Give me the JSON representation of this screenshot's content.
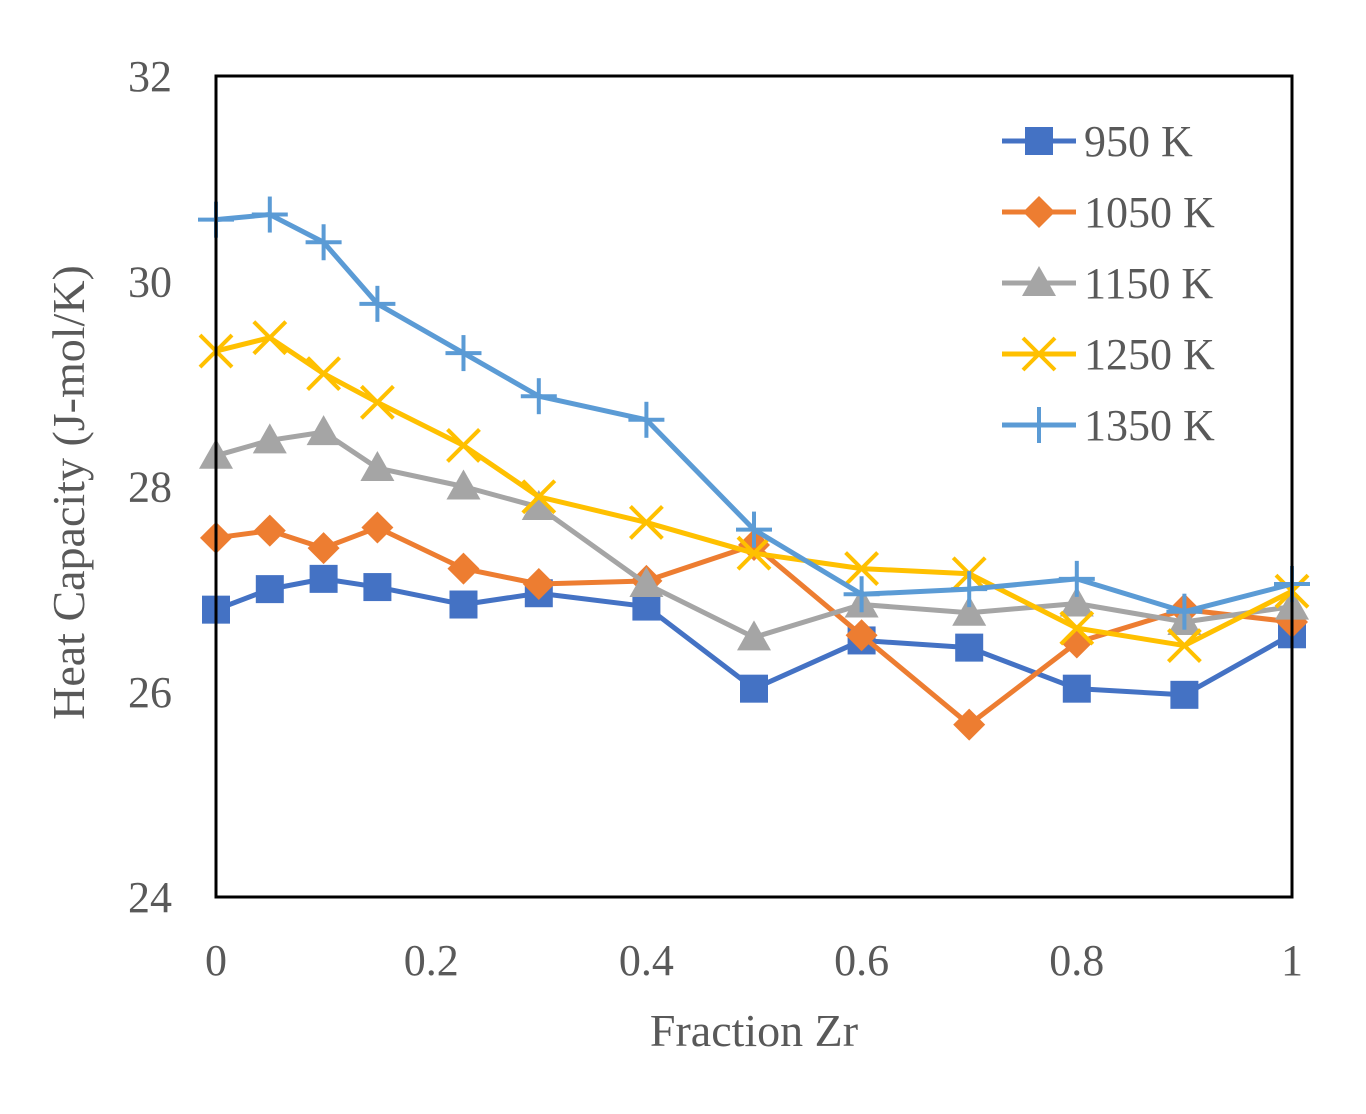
{
  "chart_data": {
    "type": "line",
    "title": "",
    "xlabel": "Fraction Zr",
    "ylabel": "Heat Capacity (J-mol/K)",
    "xlim": [
      0,
      1
    ],
    "ylim": [
      24,
      32
    ],
    "xticks": [
      0,
      0.2,
      0.4,
      0.6,
      0.8,
      1
    ],
    "xtick_labels": [
      "0",
      "0.2",
      "0.4",
      "0.6",
      "0.8",
      "1"
    ],
    "yticks": [
      24,
      26,
      28,
      30,
      32
    ],
    "ytick_labels": [
      "24",
      "26",
      "28",
      "30",
      "32"
    ],
    "grid": false,
    "legend_position": "top-right",
    "x": [
      0,
      0.05,
      0.1,
      0.15,
      0.23,
      0.3,
      0.4,
      0.5,
      0.6,
      0.7,
      0.8,
      0.9,
      1.0
    ],
    "series": [
      {
        "name": "950 K",
        "color": "#4472C4",
        "marker": "square",
        "values": [
          26.8,
          27.0,
          27.1,
          27.02,
          26.85,
          26.96,
          26.83,
          26.03,
          26.5,
          26.43,
          26.03,
          25.97,
          26.56
        ]
      },
      {
        "name": "1050 K",
        "color": "#ED7D31",
        "marker": "diamond",
        "values": [
          27.5,
          27.57,
          27.4,
          27.6,
          27.2,
          27.05,
          27.08,
          27.43,
          26.55,
          25.68,
          26.48,
          26.8,
          26.68
        ]
      },
      {
        "name": "1150 K",
        "color": "#A5A5A5",
        "marker": "triangle",
        "values": [
          28.3,
          28.45,
          28.53,
          28.18,
          28.0,
          27.8,
          27.05,
          26.53,
          26.85,
          26.77,
          26.86,
          26.68,
          26.83
        ]
      },
      {
        "name": "1250 K",
        "color": "#FFC000",
        "marker": "x",
        "values": [
          29.32,
          29.45,
          29.1,
          28.82,
          28.4,
          27.9,
          27.65,
          27.35,
          27.2,
          27.15,
          26.62,
          26.45,
          26.98
        ]
      },
      {
        "name": "1350 K",
        "color": "#5B9BD5",
        "marker": "plus",
        "values": [
          30.6,
          30.65,
          30.38,
          29.78,
          29.3,
          28.88,
          28.65,
          27.58,
          26.95,
          27.0,
          27.1,
          26.78,
          27.05
        ]
      }
    ]
  }
}
